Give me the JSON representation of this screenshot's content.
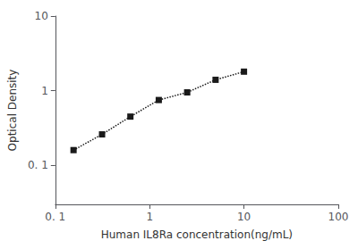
{
  "chart_data": {
    "type": "line",
    "xlabel": "Human IL8Ra concentration(ng/mL)",
    "ylabel": "Optical Density",
    "x": [
      0.156,
      0.313,
      0.625,
      1.25,
      2.5,
      5.0,
      10.0
    ],
    "values": [
      0.16,
      0.26,
      0.45,
      0.75,
      0.95,
      1.4,
      1.8
    ],
    "xlim": [
      0.1,
      100
    ],
    "ylim": [
      0.03,
      10
    ],
    "xticks": [
      {
        "value": 0.1,
        "label": "0. 1"
      },
      1,
      10,
      100
    ],
    "yticks": [
      {
        "value": 0.1,
        "label": "0. 1"
      },
      1,
      10
    ],
    "log": true,
    "grid": false,
    "color": "#1a1a1a",
    "marker": "square",
    "line_style": "dotted"
  }
}
